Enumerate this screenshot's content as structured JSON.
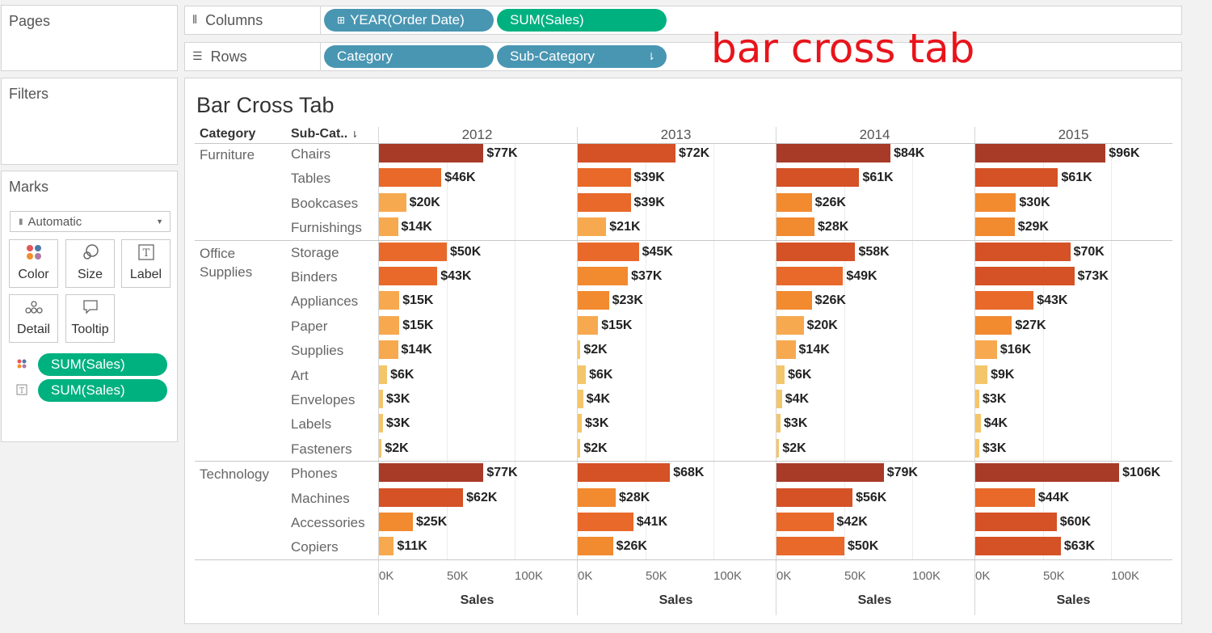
{
  "panels": {
    "pages_title": "Pages",
    "filters_title": "Filters",
    "marks_title": "Marks",
    "marks_type": "Automatic",
    "marks_buttons": [
      {
        "label": "Color",
        "icon": "color-icon"
      },
      {
        "label": "Size",
        "icon": "size-icon"
      },
      {
        "label": "Label",
        "icon": "label-icon"
      },
      {
        "label": "Detail",
        "icon": "detail-icon"
      },
      {
        "label": "Tooltip",
        "icon": "tooltip-icon"
      }
    ],
    "marks_pills": [
      {
        "label": "SUM(Sales)",
        "icon": "color-dots-icon"
      },
      {
        "label": "SUM(Sales)",
        "icon": "text-label-icon"
      }
    ]
  },
  "shelves": {
    "columns_label": "Columns",
    "rows_label": "Rows",
    "columns_pills": [
      "YEAR(Order Date)",
      "SUM(Sales)"
    ],
    "rows_pills": [
      "Category",
      "Sub-Category"
    ]
  },
  "annotation": "bar cross tab",
  "view": {
    "title": "Bar Cross Tab",
    "category_header": "Category",
    "subcategory_header": "Sub-Cat..",
    "axis_title": "Sales",
    "axis_ticks": [
      "0K",
      "50K",
      "100K"
    ]
  },
  "colors": {
    "pill_blue": "#4996b2",
    "pill_green": "#00b180",
    "annotation_red": "#e8141b",
    "bar_scale": [
      "#f4c66b",
      "#f7a950",
      "#f28a30",
      "#e8692a",
      "#d55126",
      "#a83a28"
    ]
  },
  "chart_data": {
    "type": "bar",
    "title": "Bar Cross Tab",
    "xlabel": "Sales",
    "xlim": [
      0,
      110000
    ],
    "columns": [
      "2012",
      "2013",
      "2014",
      "2015"
    ],
    "rows": [
      {
        "category": "Furniture",
        "subcategory": "Chairs",
        "values": [
          77000,
          72000,
          84000,
          96000
        ],
        "labels": [
          "$77K",
          "$72K",
          "$84K",
          "$96K"
        ]
      },
      {
        "category": "Furniture",
        "subcategory": "Tables",
        "values": [
          46000,
          39000,
          61000,
          61000
        ],
        "labels": [
          "$46K",
          "$39K",
          "$61K",
          "$61K"
        ]
      },
      {
        "category": "Furniture",
        "subcategory": "Bookcases",
        "values": [
          20000,
          39000,
          26000,
          30000
        ],
        "labels": [
          "$20K",
          "$39K",
          "$26K",
          "$30K"
        ]
      },
      {
        "category": "Furniture",
        "subcategory": "Furnishings",
        "values": [
          14000,
          21000,
          28000,
          29000
        ],
        "labels": [
          "$14K",
          "$21K",
          "$28K",
          "$29K"
        ]
      },
      {
        "category": "Office Supplies",
        "subcategory": "Storage",
        "values": [
          50000,
          45000,
          58000,
          70000
        ],
        "labels": [
          "$50K",
          "$45K",
          "$58K",
          "$70K"
        ]
      },
      {
        "category": "Office Supplies",
        "subcategory": "Binders",
        "values": [
          43000,
          37000,
          49000,
          73000
        ],
        "labels": [
          "$43K",
          "$37K",
          "$49K",
          "$73K"
        ]
      },
      {
        "category": "Office Supplies",
        "subcategory": "Appliances",
        "values": [
          15000,
          23000,
          26000,
          43000
        ],
        "labels": [
          "$15K",
          "$23K",
          "$26K",
          "$43K"
        ]
      },
      {
        "category": "Office Supplies",
        "subcategory": "Paper",
        "values": [
          15000,
          15000,
          20000,
          27000
        ],
        "labels": [
          "$15K",
          "$15K",
          "$20K",
          "$27K"
        ]
      },
      {
        "category": "Office Supplies",
        "subcategory": "Supplies",
        "values": [
          14000,
          2000,
          14000,
          16000
        ],
        "labels": [
          "$14K",
          "$2K",
          "$14K",
          "$16K"
        ]
      },
      {
        "category": "Office Supplies",
        "subcategory": "Art",
        "values": [
          6000,
          6000,
          6000,
          9000
        ],
        "labels": [
          "$6K",
          "$6K",
          "$6K",
          "$9K"
        ]
      },
      {
        "category": "Office Supplies",
        "subcategory": "Envelopes",
        "values": [
          3000,
          4000,
          4000,
          3000
        ],
        "labels": [
          "$3K",
          "$4K",
          "$4K",
          "$3K"
        ]
      },
      {
        "category": "Office Supplies",
        "subcategory": "Labels",
        "values": [
          3000,
          3000,
          3000,
          4000
        ],
        "labels": [
          "$3K",
          "$3K",
          "$3K",
          "$4K"
        ]
      },
      {
        "category": "Office Supplies",
        "subcategory": "Fasteners",
        "values": [
          2000,
          2000,
          2000,
          3000
        ],
        "labels": [
          "$2K",
          "$2K",
          "$2K",
          "$3K"
        ]
      },
      {
        "category": "Technology",
        "subcategory": "Phones",
        "values": [
          77000,
          68000,
          79000,
          106000
        ],
        "labels": [
          "$77K",
          "$68K",
          "$79K",
          "$106K"
        ]
      },
      {
        "category": "Technology",
        "subcategory": "Machines",
        "values": [
          62000,
          28000,
          56000,
          44000
        ],
        "labels": [
          "$62K",
          "$28K",
          "$56K",
          "$44K"
        ]
      },
      {
        "category": "Technology",
        "subcategory": "Accessories",
        "values": [
          25000,
          41000,
          42000,
          60000
        ],
        "labels": [
          "$25K",
          "$41K",
          "$42K",
          "$60K"
        ]
      },
      {
        "category": "Technology",
        "subcategory": "Copiers",
        "values": [
          11000,
          26000,
          50000,
          63000
        ],
        "labels": [
          "$11K",
          "$26K",
          "$50K",
          "$63K"
        ]
      }
    ],
    "categories": [
      {
        "name": "Furniture",
        "display": "Furniture"
      },
      {
        "name": "Office Supplies",
        "display": "Office\nSupplies"
      },
      {
        "name": "Technology",
        "display": "Technology"
      }
    ],
    "grid": true,
    "legend": "none"
  }
}
